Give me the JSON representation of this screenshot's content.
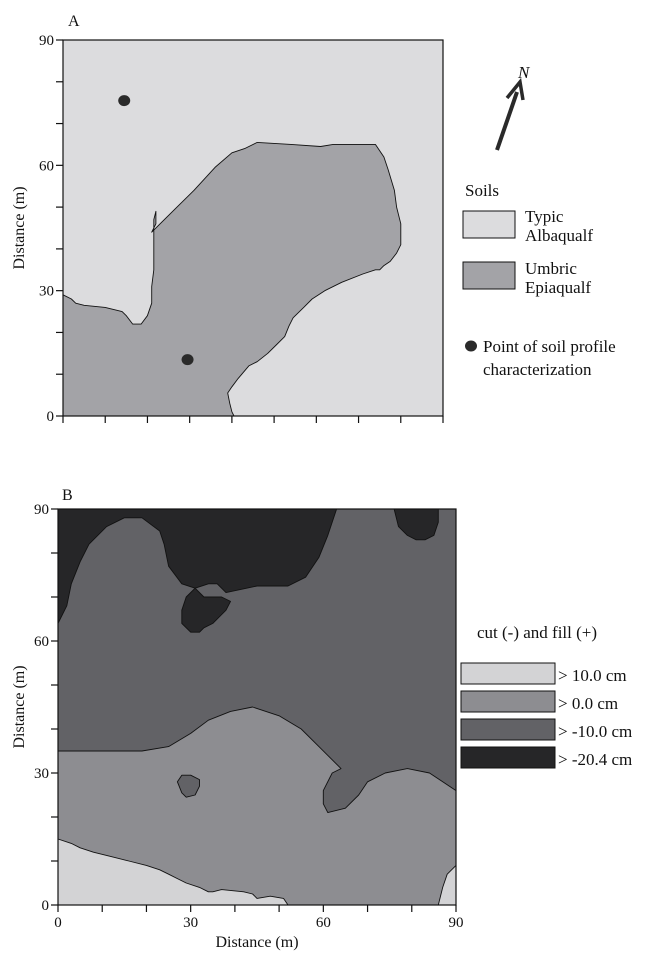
{
  "chart_data": [
    {
      "type": "map",
      "panel_label": "A",
      "ylabel": "Distance (m)",
      "xlabel": "",
      "xlim": [
        0,
        90
      ],
      "ylim": [
        0,
        90
      ],
      "x_ticks": [
        0,
        10,
        20,
        30,
        40,
        50,
        60,
        70,
        80,
        90
      ],
      "y_ticks": [
        0,
        10,
        20,
        30,
        40,
        50,
        60,
        70,
        80,
        90
      ],
      "y_tick_labels": [
        "0",
        "30",
        "60",
        "90"
      ],
      "x_tick_labels": [],
      "north_label": "N",
      "legend": {
        "title": "Soils",
        "entries": [
          {
            "lines": [
              "Typic",
              "Albaqualf"
            ],
            "color": "#dcdcde"
          },
          {
            "lines": [
              "Umbric",
              "Epiaqualf"
            ],
            "color": "#a3a3a7"
          }
        ],
        "point_entry": {
          "lines": [
            "Point of soil profile",
            "characterization"
          ],
          "color": "#2a2a2a"
        }
      },
      "points": [
        {
          "x": 14.5,
          "y": 75.5
        },
        {
          "x": 29.5,
          "y": 13.5
        }
      ],
      "regions": [
        {
          "name": "Typic Albaqualf",
          "color": "#dcdcde",
          "boundary": [
            [
              0,
              0
            ],
            [
              90,
              0
            ],
            [
              90,
              90
            ],
            [
              0,
              90
            ]
          ]
        },
        {
          "name": "Umbric Epiaqualf",
          "color": "#a3a3a7",
          "boundary": [
            [
              0,
              0
            ],
            [
              40.5,
              0
            ],
            [
              40,
              1
            ],
            [
              39.5,
              3
            ],
            [
              39,
              5.5
            ],
            [
              40,
              7
            ],
            [
              41.5,
              9
            ],
            [
              44,
              12
            ],
            [
              46,
              13
            ],
            [
              48.5,
              15
            ],
            [
              50.5,
              17
            ],
            [
              52.5,
              19
            ],
            [
              53.5,
              21.5
            ],
            [
              54.5,
              23.5
            ],
            [
              57,
              26
            ],
            [
              59,
              28
            ],
            [
              62,
              30
            ],
            [
              66,
              32
            ],
            [
              71,
              34
            ],
            [
              74,
              35
            ],
            [
              75,
              35
            ],
            [
              76,
              36
            ],
            [
              77.5,
              37
            ],
            [
              79,
              39
            ],
            [
              80,
              41
            ],
            [
              80,
              46
            ],
            [
              79,
              50
            ],
            [
              78.5,
              54
            ],
            [
              77,
              59
            ],
            [
              76,
              62
            ],
            [
              74,
              65
            ],
            [
              67,
              65
            ],
            [
              64,
              65
            ],
            [
              61,
              64.5
            ],
            [
              54,
              65
            ],
            [
              46,
              65.5
            ],
            [
              43,
              64
            ],
            [
              40,
              63
            ],
            [
              36,
              59.5
            ],
            [
              31,
              54
            ],
            [
              27,
              50
            ],
            [
              23,
              46
            ],
            [
              21,
              44
            ],
            [
              22,
              46
            ],
            [
              22,
              49
            ],
            [
              21.5,
              47
            ],
            [
              21.5,
              35
            ],
            [
              21,
              31
            ],
            [
              21,
              27
            ],
            [
              20,
              24
            ],
            [
              18.5,
              22
            ],
            [
              16.5,
              22
            ],
            [
              15,
              24
            ],
            [
              14,
              25
            ],
            [
              10,
              26
            ],
            [
              5,
              26.5
            ],
            [
              3,
              27
            ],
            [
              2,
              28
            ],
            [
              0,
              29
            ]
          ]
        }
      ]
    },
    {
      "type": "heatmap",
      "panel_label": "B",
      "xlabel": "Distance (m)",
      "ylabel": "Distance (m)",
      "xlim": [
        0,
        90
      ],
      "ylim": [
        0,
        90
      ],
      "x_ticks": [
        0,
        10,
        20,
        30,
        40,
        50,
        60,
        70,
        80,
        90
      ],
      "y_ticks": [
        0,
        10,
        20,
        30,
        40,
        50,
        60,
        70,
        80,
        90
      ],
      "x_tick_labels": [
        "0",
        "30",
        "60",
        "90"
      ],
      "y_tick_labels": [
        "0",
        "30",
        "60",
        "90"
      ],
      "legend": {
        "title": "cut (-) and fill (+)",
        "entries": [
          {
            "label": "> 10.0 cm",
            "color": "#d3d3d5"
          },
          {
            "label": "> 0.0 cm",
            "color": "#8d8d91"
          },
          {
            "label": "> -10.0 cm",
            "color": "#626266"
          },
          {
            "label": "> -20.4 cm",
            "color": "#262628"
          }
        ]
      },
      "regions": [
        {
          "level": "> -10.0 cm",
          "color": "#626266",
          "boundary": [
            [
              0,
              0
            ],
            [
              90,
              0
            ],
            [
              90,
              90
            ],
            [
              0,
              90
            ]
          ]
        },
        {
          "level": "> -20.4 cm",
          "color": "#262628",
          "boundary": [
            [
              0,
              90
            ],
            [
              63,
              90
            ],
            [
              61,
              84
            ],
            [
              59,
              79
            ],
            [
              56,
              74.5
            ],
            [
              52,
              72.5
            ],
            [
              45,
              72.5
            ],
            [
              38,
              71
            ],
            [
              36,
              73
            ],
            [
              34,
              73
            ],
            [
              31,
              72
            ],
            [
              29,
              70
            ],
            [
              28,
              67
            ],
            [
              28,
              64
            ],
            [
              30,
              62
            ],
            [
              32,
              62
            ],
            [
              33,
              63
            ],
            [
              35,
              64
            ],
            [
              37,
              66
            ],
            [
              38,
              67
            ],
            [
              39,
              69
            ],
            [
              37,
              70
            ],
            [
              35,
              70
            ],
            [
              33,
              70
            ],
            [
              31,
              72
            ],
            [
              28,
              73
            ],
            [
              25,
              77
            ],
            [
              24,
              82
            ],
            [
              23,
              85
            ],
            [
              19,
              88
            ],
            [
              15,
              88
            ],
            [
              11,
              86
            ],
            [
              7,
              82
            ],
            [
              5,
              78
            ],
            [
              3,
              73
            ],
            [
              2,
              68
            ],
            [
              0,
              64
            ]
          ]
        },
        {
          "level": "> -20.4 cm",
          "color": "#262628",
          "boundary": [
            [
              76,
              90
            ],
            [
              86,
              90
            ],
            [
              86,
              87
            ],
            [
              85,
              84
            ],
            [
              83,
              83
            ],
            [
              81,
              83
            ],
            [
              79,
              84
            ],
            [
              77,
              86
            ]
          ]
        },
        {
          "level": "> 0.0 cm",
          "color": "#8d8d91",
          "boundary": [
            [
              0,
              0
            ],
            [
              90,
              0
            ],
            [
              90,
              26
            ],
            [
              87,
              28
            ],
            [
              84,
              30
            ],
            [
              79,
              31
            ],
            [
              74,
              30
            ],
            [
              70,
              28
            ],
            [
              68,
              25
            ],
            [
              65,
              22
            ],
            [
              61,
              21
            ],
            [
              60,
              23
            ],
            [
              60,
              26
            ],
            [
              62,
              30
            ],
            [
              64,
              31
            ],
            [
              62,
              33
            ],
            [
              59,
              36
            ],
            [
              55,
              40
            ],
            [
              50,
              43
            ],
            [
              44,
              45
            ],
            [
              39,
              44
            ],
            [
              34,
              42
            ],
            [
              30,
              39
            ],
            [
              25,
              36
            ],
            [
              19,
              35
            ],
            [
              12,
              35
            ],
            [
              6,
              35
            ],
            [
              0,
              35
            ]
          ]
        },
        {
          "level": "> -10.0 cm",
          "color": "#626266",
          "boundary": [
            [
              27,
              28
            ],
            [
              28,
              29.5
            ],
            [
              30,
              29.5
            ],
            [
              32,
              28.5
            ],
            [
              32,
              27
            ],
            [
              31,
              25
            ],
            [
              29,
              24.5
            ],
            [
              28,
              25.5
            ]
          ]
        },
        {
          "level": "> 10.0 cm",
          "color": "#d3d3d5",
          "boundary": [
            [
              0,
              0
            ],
            [
              52,
              0
            ],
            [
              51,
              1.5
            ],
            [
              48,
              2
            ],
            [
              45,
              1.5
            ],
            [
              44,
              2.5
            ],
            [
              42,
              3
            ],
            [
              37,
              3.5
            ],
            [
              35,
              3
            ],
            [
              34,
              3
            ],
            [
              32,
              4
            ],
            [
              29,
              5
            ],
            [
              27,
              6
            ],
            [
              25,
              7
            ],
            [
              23,
              8
            ],
            [
              20,
              9
            ],
            [
              16,
              10
            ],
            [
              12,
              11
            ],
            [
              8,
              12
            ],
            [
              5,
              13
            ],
            [
              3,
              14
            ],
            [
              0,
              15
            ]
          ]
        },
        {
          "level": "> 10.0 cm",
          "color": "#d3d3d5",
          "boundary": [
            [
              90,
              0
            ],
            [
              86,
              0
            ],
            [
              87,
              4
            ],
            [
              88,
              7
            ],
            [
              90,
              9
            ]
          ]
        }
      ]
    }
  ]
}
